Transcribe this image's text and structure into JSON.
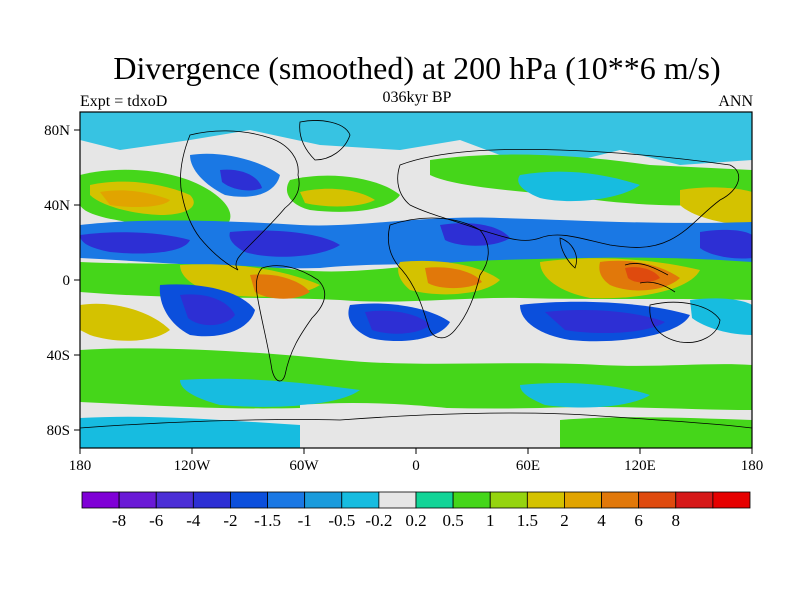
{
  "title": "Divergence (smoothed) at 200 hPa (10**6 m/s)",
  "subtitle": "036kyr BP",
  "left_label": "Expt = tdxoD",
  "right_label": "ANN",
  "axes": {
    "lat_ticks": [
      "80N",
      "40N",
      "0",
      "40S",
      "80S"
    ],
    "lon_ticks": [
      "180",
      "120W",
      "60W",
      "0",
      "60E",
      "120E",
      "180"
    ]
  },
  "colorbar": {
    "colors": [
      "#7f00d6",
      "#6a1ad6",
      "#4b2ed6",
      "#2d2fd4",
      "#0b4fdc",
      "#1a78e4",
      "#1a9bdc",
      "#17bce0",
      "#e6e6e6",
      "#12d497",
      "#45d61a",
      "#95d40f",
      "#d4c200",
      "#e1a400",
      "#e1780a",
      "#df4a0e",
      "#d61818",
      "#e60000"
    ],
    "labels": [
      "-8",
      "-6",
      "-4",
      "-2",
      "-1.5",
      "-1",
      "-0.5",
      "-0.2",
      "0.2",
      "0.5",
      "1",
      "1.5",
      "2",
      "4",
      "6",
      "8"
    ]
  },
  "colors": {
    "neutral": "#e6e6e6",
    "coast": "#000000"
  }
}
